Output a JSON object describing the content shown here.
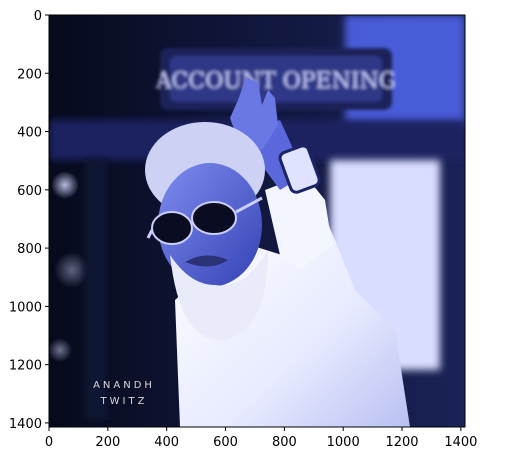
{
  "chart_data": {
    "type": "image",
    "title": "",
    "xlabel": "",
    "ylabel": "",
    "xlim": [
      0,
      1414
    ],
    "ylim": [
      1414,
      0
    ],
    "xticks": [
      0,
      200,
      400,
      600,
      800,
      1000,
      1200,
      1400
    ],
    "yticks": [
      0,
      200,
      400,
      600,
      800,
      1000,
      1200,
      1400
    ],
    "y_inverted": true,
    "grid": false,
    "image_content": "man with white beard and dark sunglasses in white shirt pointing at camera, blue-tinted colormap",
    "watermark": [
      "ANANDH",
      "TWITZ"
    ],
    "sign_text": "ACCOUNT OPENING"
  },
  "colors": {
    "dark": "#0b0f24",
    "mid": "#3a4ab8",
    "light": "#eef0ff",
    "skin": "#5a6ae0"
  }
}
